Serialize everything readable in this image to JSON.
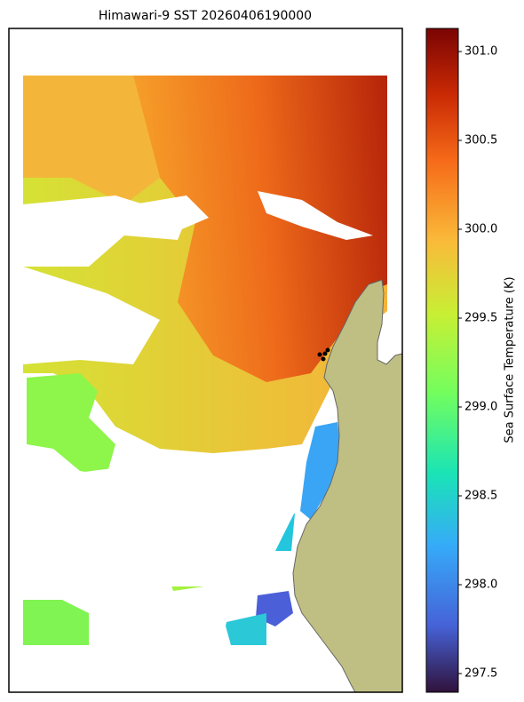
{
  "chart_data": {
    "type": "map",
    "title": "Himawari-9 SST 20260406190000",
    "colorbar": {
      "label": "Sea Surface Temperature (K)",
      "lim": [
        297.395,
        301.13
      ],
      "ticks": [
        297.5,
        {
          "value": 298,
          "label": "298.0"
        },
        298.5,
        {
          "value": 299,
          "label": "299.0"
        },
        299.5,
        {
          "value": 300,
          "label": "300.0"
        },
        300.5,
        {
          "value": 301,
          "label": "301.0"
        }
      ]
    }
  }
}
